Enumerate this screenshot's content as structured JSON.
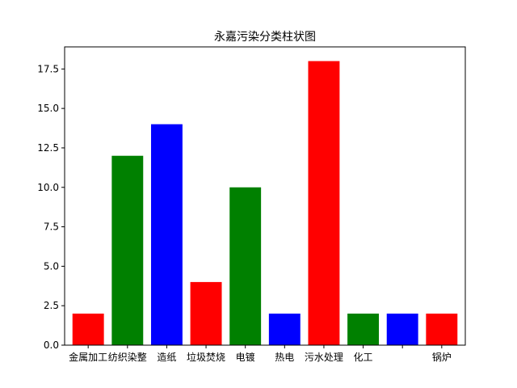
{
  "chart_data": {
    "type": "bar",
    "title": "永嘉污染分类柱状图",
    "xlabel": "",
    "ylabel": "",
    "categories": [
      "金属加工",
      "纺织染整",
      "造纸",
      "垃圾焚烧",
      "电镀",
      "热电",
      "污水处理",
      "化工",
      "",
      "锅炉"
    ],
    "values": [
      2,
      12,
      14,
      4,
      10,
      2,
      18,
      2,
      2,
      2
    ],
    "bar_colors": [
      "#ff0000",
      "#008000",
      "#0000ff",
      "#ff0000",
      "#008000",
      "#0000ff",
      "#ff0000",
      "#008000",
      "#0000ff",
      "#ff0000"
    ],
    "ylim": [
      0,
      18.9
    ],
    "yticks": [
      0.0,
      2.5,
      5.0,
      7.5,
      10.0,
      12.5,
      15.0,
      17.5
    ],
    "ytick_labels": [
      "0.0",
      "2.5",
      "5.0",
      "7.5",
      "10.0",
      "12.5",
      "15.0",
      "17.5"
    ],
    "grid": false,
    "legend": "none"
  }
}
